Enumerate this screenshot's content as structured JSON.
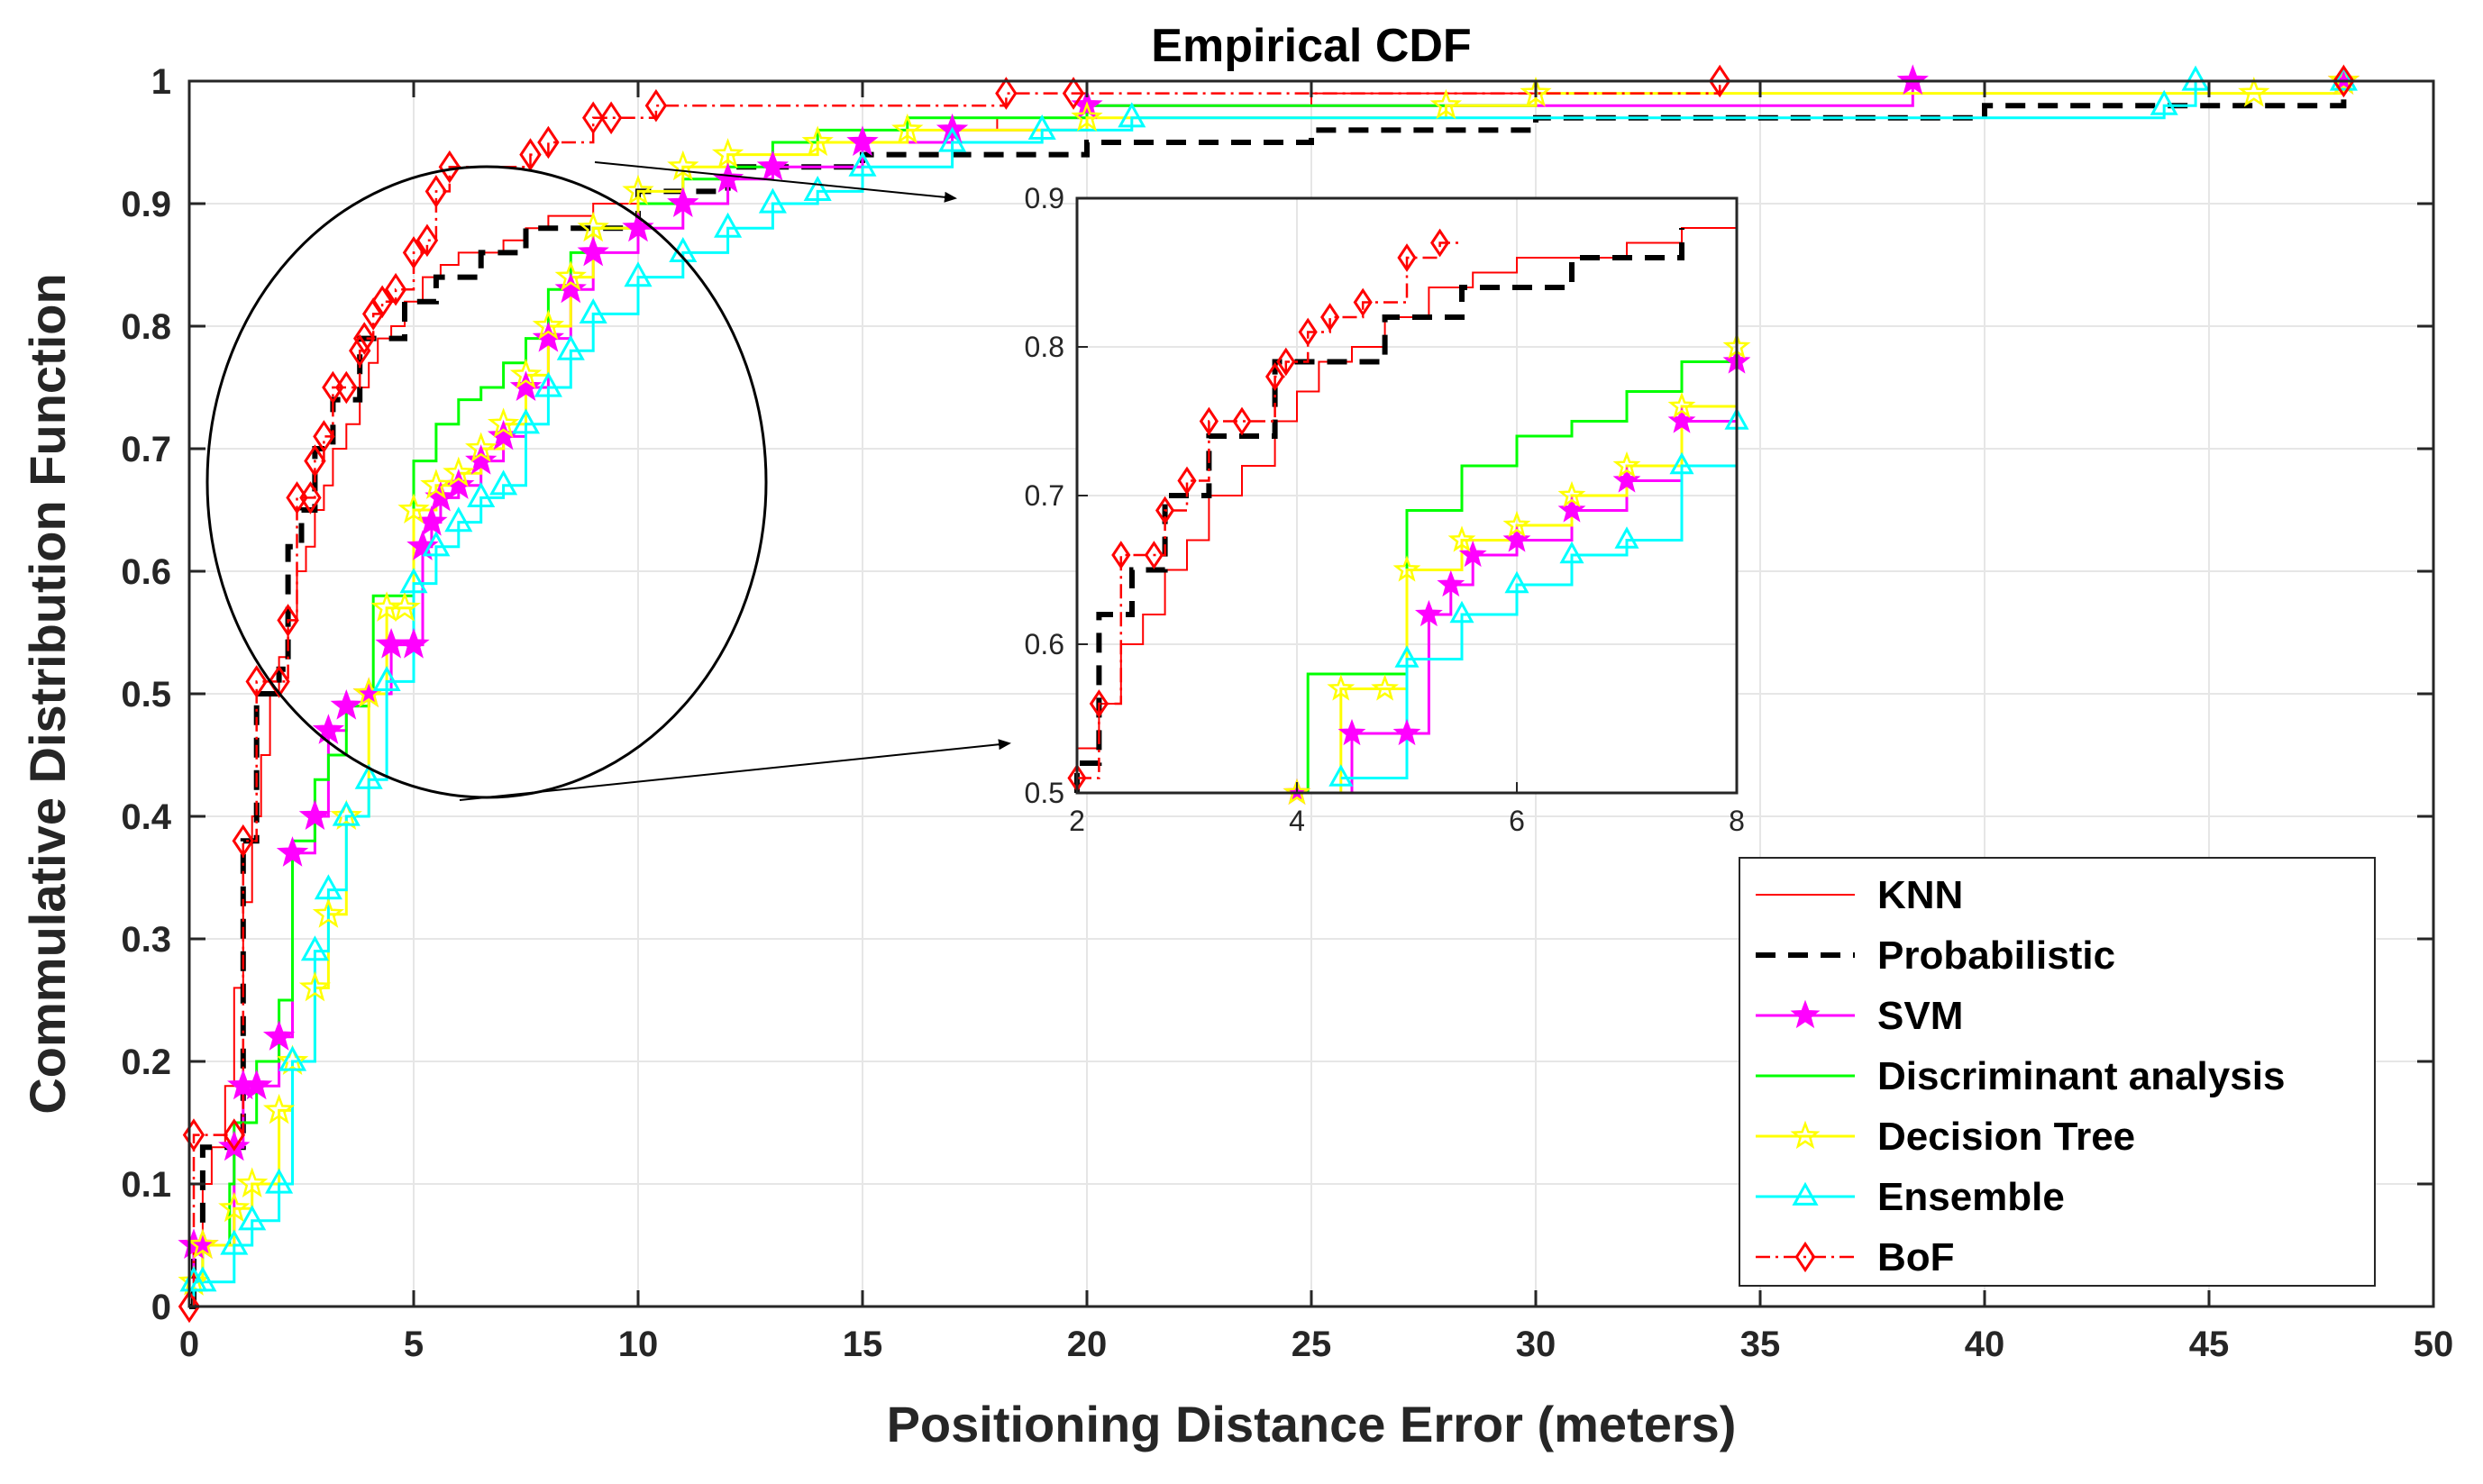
{
  "chart_data": {
    "type": "line",
    "title": "Empirical CDF",
    "xlabel": "Positioning Distance Error (meters)",
    "ylabel": "Commulative Distribution Function",
    "xlim": [
      0,
      50
    ],
    "ylim": [
      0,
      1
    ],
    "xticks": [
      "0",
      "5",
      "10",
      "15",
      "20",
      "25",
      "30",
      "35",
      "40",
      "45",
      "50"
    ],
    "yticks": [
      "0",
      "0.1",
      "0.2",
      "0.3",
      "0.4",
      "0.5",
      "0.6",
      "0.7",
      "0.8",
      "0.9",
      "1"
    ],
    "grid": true,
    "legend_position": "bottom-right",
    "series": [
      {
        "name": "KNN",
        "color": "#ff0000",
        "style": "solid-thin",
        "marker": "none",
        "x": [
          0,
          0.1,
          0.3,
          0.5,
          0.8,
          1.0,
          1.2,
          1.4,
          1.6,
          1.8,
          2.0,
          2.2,
          2.4,
          2.6,
          2.8,
          3.0,
          3.2,
          3.5,
          3.8,
          4.0,
          4.2,
          4.5,
          4.8,
          5.2,
          5.6,
          6.0,
          6.5,
          7.0,
          7.5,
          8,
          9,
          10,
          11,
          12,
          13,
          14,
          16,
          18,
          20,
          22,
          25,
          30,
          35,
          40,
          48
        ],
        "y": [
          0,
          0.05,
          0.1,
          0.13,
          0.18,
          0.26,
          0.33,
          0.4,
          0.45,
          0.5,
          0.53,
          0.56,
          0.6,
          0.62,
          0.65,
          0.67,
          0.7,
          0.72,
          0.75,
          0.77,
          0.79,
          0.8,
          0.82,
          0.84,
          0.85,
          0.86,
          0.86,
          0.87,
          0.88,
          0.89,
          0.9,
          0.91,
          0.92,
          0.93,
          0.94,
          0.95,
          0.96,
          0.97,
          0.98,
          0.98,
          0.99,
          0.99,
          0.99,
          0.99,
          1.0
        ]
      },
      {
        "name": "Probabilistic",
        "color": "#000000",
        "style": "dashed-thick",
        "marker": "none",
        "x": [
          0,
          0.1,
          0.3,
          1.0,
          1.2,
          1.5,
          2.0,
          2.2,
          2.5,
          2.8,
          3.2,
          3.8,
          4.2,
          4.8,
          5.5,
          6.5,
          7.5,
          8.5,
          10,
          12,
          15,
          18,
          20,
          25,
          30,
          35,
          40,
          46,
          48
        ],
        "y": [
          0,
          0.05,
          0.13,
          0.13,
          0.38,
          0.5,
          0.52,
          0.62,
          0.65,
          0.7,
          0.74,
          0.79,
          0.79,
          0.82,
          0.84,
          0.86,
          0.88,
          0.88,
          0.91,
          0.93,
          0.94,
          0.94,
          0.95,
          0.96,
          0.97,
          0.97,
          0.98,
          0.98,
          1.0
        ]
      },
      {
        "name": "SVM",
        "color": "#ff00ff",
        "style": "solid",
        "marker": "star",
        "x": [
          0,
          0.1,
          0.3,
          1.0,
          1.2,
          1.5,
          2.0,
          2.3,
          2.8,
          3.1,
          3.5,
          4.0,
          4.5,
          5.0,
          5.2,
          5.4,
          5.6,
          6.0,
          6.5,
          7.0,
          7.5,
          8.0,
          8.5,
          9,
          10,
          11,
          12,
          13,
          15,
          17,
          20,
          38.4,
          48
        ],
        "y": [
          0,
          0.05,
          0.05,
          0.13,
          0.18,
          0.18,
          0.22,
          0.37,
          0.4,
          0.47,
          0.49,
          0.5,
          0.54,
          0.54,
          0.62,
          0.64,
          0.66,
          0.67,
          0.69,
          0.71,
          0.75,
          0.79,
          0.83,
          0.86,
          0.88,
          0.9,
          0.92,
          0.93,
          0.95,
          0.96,
          0.98,
          1.0,
          1.0
        ]
      },
      {
        "name": "Discriminant analysis",
        "color": "#00ff00",
        "style": "solid",
        "marker": "none",
        "x": [
          0,
          0.1,
          0.3,
          0.9,
          1.0,
          1.2,
          1.5,
          2.0,
          2.3,
          2.8,
          3.1,
          3.5,
          4.0,
          4.1,
          4.5,
          5.0,
          5.5,
          6.0,
          6.5,
          7.0,
          7.5,
          8.0,
          8.5,
          9,
          10,
          11,
          12,
          13,
          14,
          16,
          20,
          30,
          48
        ],
        "y": [
          0,
          0.02,
          0.05,
          0.1,
          0.15,
          0.15,
          0.2,
          0.25,
          0.38,
          0.43,
          0.45,
          0.49,
          0.5,
          0.58,
          0.58,
          0.69,
          0.72,
          0.74,
          0.75,
          0.77,
          0.79,
          0.83,
          0.86,
          0.88,
          0.9,
          0.92,
          0.93,
          0.95,
          0.96,
          0.97,
          0.98,
          1.0,
          1.0
        ]
      },
      {
        "name": "Decision Tree",
        "color": "#ffff00",
        "style": "solid",
        "marker": "star",
        "x": [
          0,
          0.1,
          0.3,
          1.0,
          1.4,
          2.0,
          2.3,
          2.8,
          3.1,
          3.5,
          4.0,
          4.4,
          4.8,
          5.0,
          5.5,
          6.0,
          6.5,
          7.0,
          7.5,
          8.0,
          8.5,
          9,
          10,
          11,
          12,
          14,
          16,
          20,
          28,
          30,
          46,
          48
        ],
        "y": [
          0,
          0.02,
          0.05,
          0.08,
          0.1,
          0.16,
          0.2,
          0.26,
          0.32,
          0.4,
          0.5,
          0.57,
          0.57,
          0.65,
          0.67,
          0.68,
          0.7,
          0.72,
          0.76,
          0.8,
          0.84,
          0.88,
          0.91,
          0.93,
          0.94,
          0.95,
          0.96,
          0.97,
          0.98,
          0.99,
          0.99,
          1.0
        ]
      },
      {
        "name": "Ensemble",
        "color": "#00ffff",
        "style": "solid",
        "marker": "triangle",
        "x": [
          0,
          0.1,
          0.3,
          1.0,
          1.4,
          2.0,
          2.3,
          2.8,
          3.1,
          3.5,
          4.0,
          4.4,
          5.0,
          5.5,
          6.0,
          6.5,
          7.0,
          7.5,
          8.0,
          8.5,
          9,
          10,
          11,
          12,
          13,
          14,
          15,
          17,
          19,
          21,
          44,
          44.7,
          48
        ],
        "y": [
          0,
          0.02,
          0.02,
          0.05,
          0.07,
          0.1,
          0.2,
          0.29,
          0.34,
          0.4,
          0.43,
          0.51,
          0.59,
          0.62,
          0.64,
          0.66,
          0.67,
          0.72,
          0.75,
          0.78,
          0.81,
          0.84,
          0.86,
          0.88,
          0.9,
          0.91,
          0.93,
          0.95,
          0.96,
          0.97,
          0.98,
          1.0,
          1.0
        ]
      },
      {
        "name": "BoF",
        "color": "#ff0000",
        "style": "dashdot",
        "marker": "diamond",
        "x": [
          0,
          0.1,
          1.0,
          1.2,
          1.5,
          2.0,
          2.2,
          2.4,
          2.7,
          2.8,
          3.0,
          3.2,
          3.5,
          3.8,
          3.9,
          4.1,
          4.3,
          4.6,
          5.0,
          5.3,
          5.5,
          5.8,
          7.6,
          8.0,
          9.0,
          9.4,
          10.4,
          18.2,
          19.7,
          34.1,
          48
        ],
        "y": [
          0,
          0.14,
          0.14,
          0.38,
          0.51,
          0.51,
          0.56,
          0.66,
          0.66,
          0.69,
          0.71,
          0.75,
          0.75,
          0.78,
          0.79,
          0.81,
          0.82,
          0.83,
          0.86,
          0.87,
          0.91,
          0.93,
          0.94,
          0.95,
          0.97,
          0.97,
          0.98,
          0.99,
          0.99,
          1.0,
          1.0
        ]
      }
    ],
    "inset": {
      "xlim": [
        2,
        8
      ],
      "ylim": [
        0.5,
        0.9
      ],
      "xticks": [
        "2",
        "4",
        "6",
        "8"
      ],
      "yticks": [
        "0.5",
        "0.6",
        "0.7",
        "0.8",
        "0.9"
      ],
      "zoom_circle_center": [
        6.5,
        0.67
      ],
      "zoom_circle_label": ""
    }
  }
}
